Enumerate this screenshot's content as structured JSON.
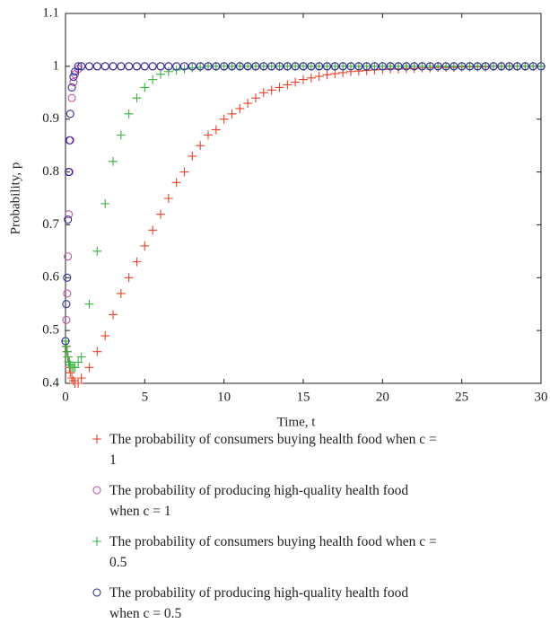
{
  "chart_data": {
    "type": "scatter",
    "xlabel": "Time, t",
    "ylabel": "Probability, p",
    "xlim": [
      0,
      30
    ],
    "ylim": [
      0.4,
      1.1
    ],
    "xticks": [
      0,
      5,
      10,
      15,
      20,
      25,
      30
    ],
    "yticks": [
      0.4,
      0.5,
      0.6,
      0.7,
      0.8,
      0.9,
      1,
      1.1
    ],
    "x": [
      0,
      0.05,
      0.1,
      0.15,
      0.2,
      0.25,
      0.3,
      0.4,
      0.5,
      0.6,
      0.8,
      1,
      1.5,
      2,
      2.5,
      3,
      3.5,
      4,
      4.5,
      5,
      5.5,
      6,
      6.5,
      7,
      7.5,
      8,
      8.5,
      9,
      9.5,
      10,
      10.5,
      11,
      11.5,
      12,
      12.5,
      13,
      13.5,
      14,
      14.5,
      15,
      15.5,
      16,
      16.5,
      17,
      17.5,
      18,
      18.5,
      19,
      19.5,
      20,
      20.5,
      21,
      21.5,
      22,
      22.5,
      23,
      23.5,
      24,
      24.5,
      25,
      25.5,
      26,
      26.5,
      27,
      27.5,
      28,
      28.5,
      29,
      29.5,
      30
    ],
    "series": [
      {
        "name": "The probability of consumers buying health food when c = 1",
        "color": "#e8432c",
        "marker": "plus",
        "values": [
          0.48,
          0.47,
          0.46,
          0.45,
          0.44,
          0.43,
          0.42,
          0.41,
          0.405,
          0.4,
          0.4,
          0.41,
          0.43,
          0.46,
          0.49,
          0.53,
          0.57,
          0.6,
          0.63,
          0.66,
          0.69,
          0.72,
          0.75,
          0.78,
          0.8,
          0.83,
          0.85,
          0.87,
          0.88,
          0.9,
          0.91,
          0.92,
          0.93,
          0.94,
          0.95,
          0.955,
          0.96,
          0.965,
          0.97,
          0.975,
          0.978,
          0.981,
          0.984,
          0.986,
          0.988,
          0.99,
          0.991,
          0.992,
          0.993,
          0.994,
          0.995,
          0.995,
          0.996,
          0.996,
          0.997,
          0.997,
          0.998,
          0.998,
          0.998,
          0.999,
          0.999,
          0.999,
          0.999,
          1,
          1,
          1,
          1,
          1,
          1,
          1
        ]
      },
      {
        "name": "The probability of producing high-quality health food when c = 1",
        "color": "#c0549c",
        "marker": "circle",
        "values": [
          0.48,
          0.52,
          0.57,
          0.64,
          0.72,
          0.8,
          0.86,
          0.94,
          0.97,
          0.985,
          0.995,
          1,
          1,
          1,
          1,
          1,
          1,
          1,
          1,
          1,
          1,
          1,
          1,
          1,
          1,
          1,
          1,
          1,
          1,
          1,
          1,
          1,
          1,
          1,
          1,
          1,
          1,
          1,
          1,
          1,
          1,
          1,
          1,
          1,
          1,
          1,
          1,
          1,
          1,
          1,
          1,
          1,
          1,
          1,
          1,
          1,
          1,
          1,
          1,
          1,
          1,
          1,
          1,
          1,
          1,
          1,
          1,
          1,
          1,
          1
        ]
      },
      {
        "name": "The probability of consumers buying health food when c = 0.5",
        "color": "#3cb043",
        "marker": "plus",
        "values": [
          0.48,
          0.47,
          0.46,
          0.45,
          0.44,
          0.44,
          0.435,
          0.43,
          0.43,
          0.43,
          0.44,
          0.45,
          0.55,
          0.65,
          0.74,
          0.82,
          0.87,
          0.91,
          0.94,
          0.96,
          0.975,
          0.985,
          0.99,
          0.993,
          0.995,
          0.997,
          0.998,
          1,
          1,
          1,
          1,
          1,
          1,
          1,
          1,
          1,
          1,
          1,
          1,
          1,
          1,
          1,
          1,
          1,
          1,
          1,
          1,
          1,
          1,
          1,
          1,
          1,
          1,
          1,
          1,
          1,
          1,
          1,
          1,
          1,
          1,
          1,
          1,
          1,
          1,
          1,
          1,
          1,
          1,
          1
        ]
      },
      {
        "name": "The probability of producing high-quality health food when c = 0.5",
        "color": "#2e2e9a",
        "marker": "circle",
        "values": [
          0.48,
          0.55,
          0.6,
          0.71,
          0.8,
          0.86,
          0.91,
          0.96,
          0.98,
          0.99,
          1,
          1,
          1,
          1,
          1,
          1,
          1,
          1,
          1,
          1,
          1,
          1,
          1,
          1,
          1,
          1,
          1,
          1,
          1,
          1,
          1,
          1,
          1,
          1,
          1,
          1,
          1,
          1,
          1,
          1,
          1,
          1,
          1,
          1,
          1,
          1,
          1,
          1,
          1,
          1,
          1,
          1,
          1,
          1,
          1,
          1,
          1,
          1,
          1,
          1,
          1,
          1,
          1,
          1,
          1,
          1,
          1,
          1,
          1,
          1
        ]
      }
    ]
  }
}
